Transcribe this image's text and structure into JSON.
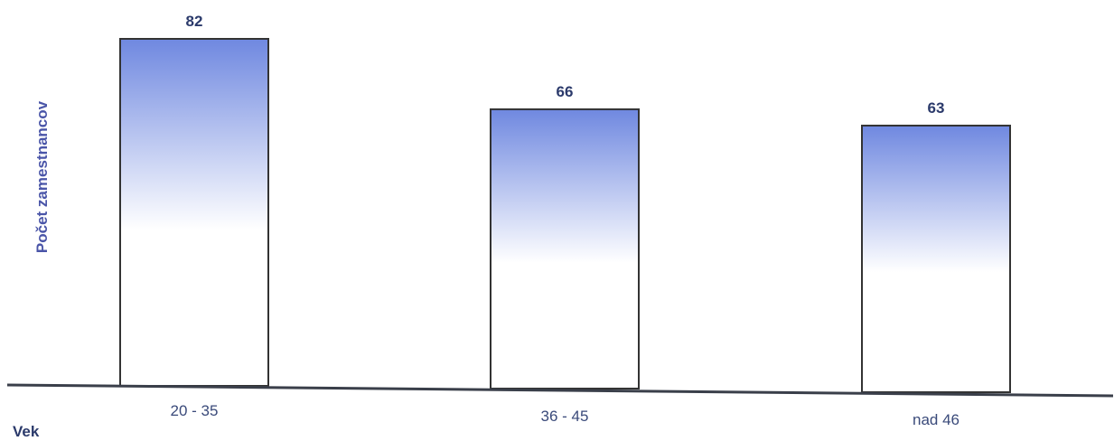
{
  "chart_data": {
    "type": "bar",
    "title": "",
    "xlabel": "Vek",
    "ylabel": "Počet zamestnancov",
    "categories": [
      "20 - 35",
      "36 - 45",
      "nad 46"
    ],
    "values": [
      82,
      66,
      63
    ],
    "ylim": [
      0,
      82
    ],
    "grid": false,
    "legend": "none",
    "data_labels": true,
    "bar_gradient": {
      "top_color": "#6f88e0",
      "bottom_color": "#ffffff"
    },
    "bar_outline_color": "#333333",
    "axis_color": "#3a3f4a"
  }
}
